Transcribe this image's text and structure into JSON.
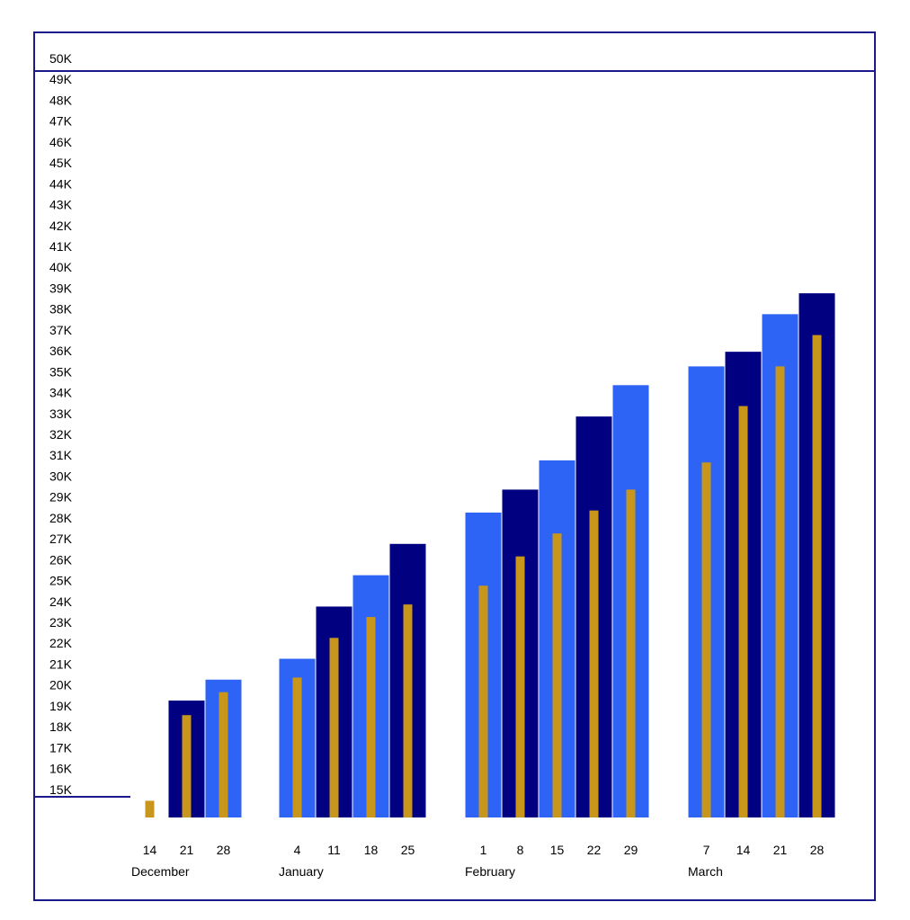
{
  "chart_data": {
    "type": "bar",
    "y_unit_suffix": "K",
    "ylim": [
      14,
      50
    ],
    "ytick_values": [
      15,
      16,
      17,
      18,
      19,
      20,
      21,
      22,
      23,
      24,
      25,
      26,
      27,
      28,
      29,
      30,
      31,
      32,
      33,
      34,
      35,
      36,
      37,
      38,
      39,
      40,
      41,
      42,
      43,
      44,
      45,
      46,
      47,
      48,
      49,
      50
    ],
    "grid": false,
    "series": [
      {
        "values": [
          14,
          19.6,
          20.6,
          21.6,
          24.1,
          25.6,
          27.1,
          28.6,
          29.7,
          31.1,
          33.2,
          34.7,
          35.6,
          36.3,
          38.1,
          39.1
        ]
      },
      {
        "values": [
          14.8,
          18.9,
          20.0,
          20.7,
          22.6,
          23.6,
          24.2,
          25.1,
          26.5,
          27.6,
          28.7,
          29.7,
          31.0,
          33.7,
          35.6,
          37.1
        ]
      }
    ],
    "groups": [
      {
        "label": "December",
        "ticks": [
          "14",
          "21",
          "28"
        ]
      },
      {
        "label": "January",
        "ticks": [
          "4",
          "11",
          "18",
          "25"
        ]
      },
      {
        "label": "February",
        "ticks": [
          "1",
          "8",
          "15",
          "22",
          "29"
        ]
      },
      {
        "label": "March",
        "ticks": [
          "7",
          "14",
          "21",
          "28"
        ]
      }
    ],
    "bar_colors": [
      "#2e64f5",
      "#000080"
    ],
    "inner_bar_color": "#c8961a"
  }
}
